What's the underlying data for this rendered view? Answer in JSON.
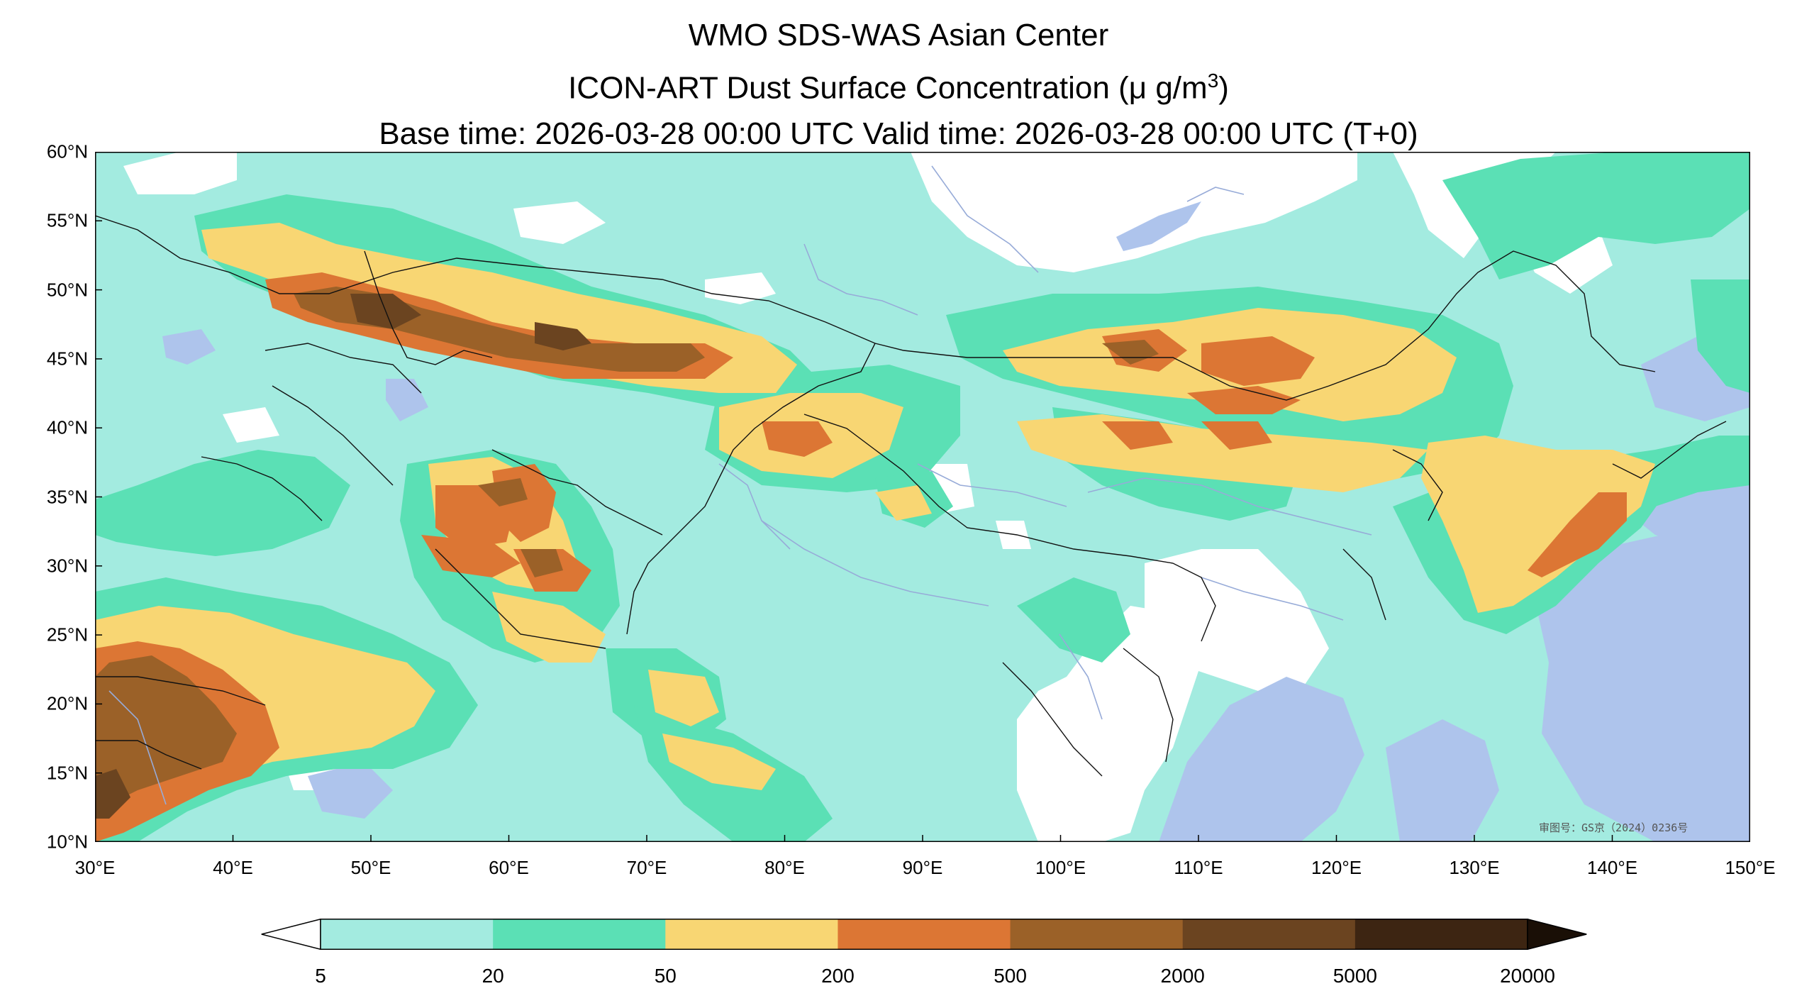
{
  "title": {
    "line1": "WMO SDS-WAS Asian Center",
    "line2_prefix": "ICON-ART Dust Surface Concentration (",
    "line2_unit": "μ g/m",
    "line2_sup": "3",
    "line2_suffix": ")",
    "line3": "Base time: 2026-03-28 00:00 UTC Valid time: 2026-03-28 00:00 UTC (T+0)"
  },
  "map": {
    "lon_range": [
      30,
      150
    ],
    "lat_range": [
      10,
      60
    ],
    "lat_ticks": [
      {
        "value": 60,
        "label": "60°N"
      },
      {
        "value": 55,
        "label": "55°N"
      },
      {
        "value": 50,
        "label": "50°N"
      },
      {
        "value": 45,
        "label": "45°N"
      },
      {
        "value": 40,
        "label": "40°N"
      },
      {
        "value": 35,
        "label": "35°N"
      },
      {
        "value": 30,
        "label": "30°N"
      },
      {
        "value": 25,
        "label": "25°N"
      },
      {
        "value": 20,
        "label": "20°N"
      },
      {
        "value": 15,
        "label": "15°N"
      },
      {
        "value": 10,
        "label": "10°N"
      }
    ],
    "lon_ticks": [
      {
        "value": 30,
        "label": "30°E"
      },
      {
        "value": 40,
        "label": "40°E"
      },
      {
        "value": 50,
        "label": "50°E"
      },
      {
        "value": 60,
        "label": "60°E"
      },
      {
        "value": 70,
        "label": "70°E"
      },
      {
        "value": 80,
        "label": "80°E"
      },
      {
        "value": 90,
        "label": "90°E"
      },
      {
        "value": 100,
        "label": "100°E"
      },
      {
        "value": 110,
        "label": "110°E"
      },
      {
        "value": 120,
        "label": "120°E"
      },
      {
        "value": 130,
        "label": "130°E"
      },
      {
        "value": 140,
        "label": "140°E"
      },
      {
        "value": 150,
        "label": "150°E"
      }
    ],
    "watermark": "审图号：GS京（2024）0236号",
    "colors": {
      "no_data": "#ffffff",
      "water": "#aec4ec",
      "level_5_20": "#a3ebe0",
      "level_20_50": "#5be0b5",
      "level_50_200": "#f8d673",
      "level_200_500": "#dc7634",
      "level_500_2000": "#9b6128",
      "level_2000_5000": "#6b4420",
      "level_5000_20000": "#3d2512",
      "border": "#111111",
      "river": "#97abd8"
    }
  },
  "colorbar": {
    "extend": "both",
    "levels": [
      {
        "value": 5,
        "label": "5"
      },
      {
        "value": 20,
        "label": "20"
      },
      {
        "value": 50,
        "label": "50"
      },
      {
        "value": 200,
        "label": "200"
      },
      {
        "value": 500,
        "label": "500"
      },
      {
        "value": 2000,
        "label": "2000"
      },
      {
        "value": 5000,
        "label": "5000"
      },
      {
        "value": 20000,
        "label": "20000"
      }
    ],
    "under_color": "#ffffff",
    "over_color": "#1a0f06",
    "bin_colors": [
      "#a3ebe0",
      "#5be0b5",
      "#f8d673",
      "#dc7634",
      "#9b6128",
      "#6b4420",
      "#3d2512"
    ]
  }
}
